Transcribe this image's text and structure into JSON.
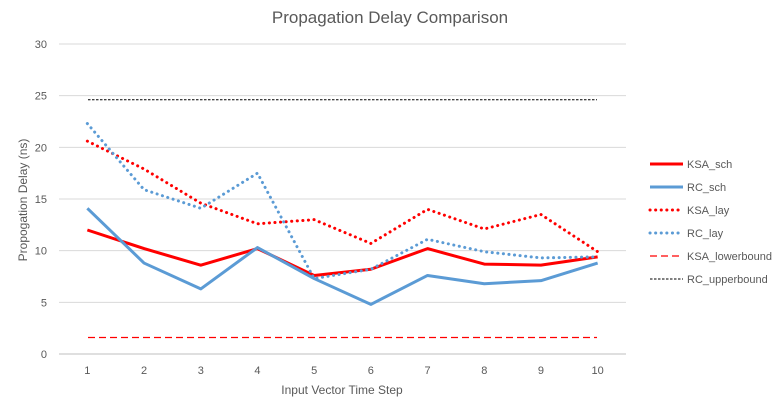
{
  "chart_data": {
    "type": "line",
    "title": "Propagation Delay Comparison",
    "xlabel": "Input Vector Time Step",
    "ylabel": "Propogation Delay (ns)",
    "x": [
      1,
      2,
      3,
      4,
      5,
      6,
      7,
      8,
      9,
      10
    ],
    "ylim": [
      0,
      30
    ],
    "yticks": [
      0,
      5,
      10,
      15,
      20,
      25,
      30
    ],
    "grid": true,
    "legend_position": "right",
    "series": [
      {
        "name": "KSA_sch",
        "color": "#ff0000",
        "style": "solid",
        "width": 3,
        "values": [
          12.0,
          10.2,
          8.6,
          10.2,
          7.6,
          8.2,
          10.2,
          8.7,
          8.6,
          9.4
        ]
      },
      {
        "name": "RC_sch",
        "color": "#5b9bd5",
        "style": "solid",
        "width": 3,
        "values": [
          14.1,
          8.8,
          6.3,
          10.3,
          7.3,
          4.8,
          7.6,
          6.8,
          7.1,
          8.8
        ]
      },
      {
        "name": "KSA_lay",
        "color": "#ff0000",
        "style": "dotted",
        "width": 3,
        "values": [
          20.6,
          17.9,
          14.6,
          12.6,
          13.0,
          10.7,
          14.0,
          12.1,
          13.5,
          9.9
        ]
      },
      {
        "name": "RC_lay",
        "color": "#5b9bd5",
        "style": "dotted",
        "width": 3,
        "values": [
          22.3,
          15.9,
          14.1,
          17.5,
          7.3,
          8.2,
          11.1,
          9.9,
          9.3,
          9.4
        ]
      },
      {
        "name": "KSA_lowerbound",
        "color": "#ff0000",
        "style": "dashed",
        "width": 1.2,
        "values": [
          1.6,
          1.6,
          1.6,
          1.6,
          1.6,
          1.6,
          1.6,
          1.6,
          1.6,
          1.6
        ]
      },
      {
        "name": "RC_upperbound",
        "color": "#000000",
        "style": "dashed-fine",
        "width": 1,
        "values": [
          24.6,
          24.6,
          24.6,
          24.6,
          24.6,
          24.6,
          24.6,
          24.6,
          24.6,
          24.6
        ]
      }
    ]
  }
}
